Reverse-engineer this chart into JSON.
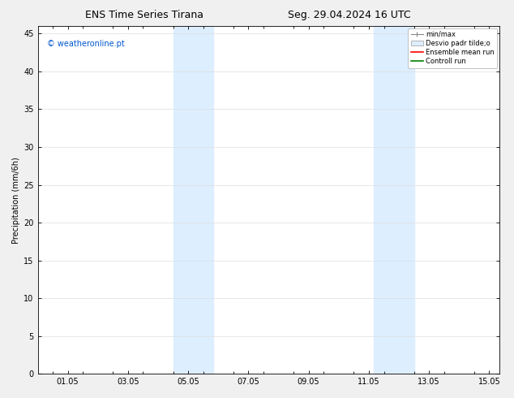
{
  "title_left": "ENS Time Series Tirana",
  "title_right": "Seg. 29.04.2024 16 UTC",
  "ylabel": "Precipitation (mm/6h)",
  "watermark": "© weatheronline.pt",
  "watermark_color": "#0055cc",
  "bg_color": "#f0f0f0",
  "plot_bg_color": "#ffffff",
  "shaded_bands": [
    {
      "xstart": 4.0,
      "xend": 5.33
    },
    {
      "xstart": 10.67,
      "xend": 12.0
    }
  ],
  "shade_color": "#ddeeff",
  "xlim": [
    -0.5,
    14.83
  ],
  "ylim": [
    0,
    46
  ],
  "yticks": [
    0,
    5,
    10,
    15,
    20,
    25,
    30,
    35,
    40,
    45
  ],
  "xtick_labels": [
    "01.05",
    "03.05",
    "05.05",
    "07.05",
    "09.05",
    "11.05",
    "13.05",
    "15.05"
  ],
  "xtick_positions": [
    0.5,
    2.5,
    4.5,
    6.5,
    8.5,
    10.5,
    12.5,
    14.5
  ],
  "legend_labels": [
    "min/max",
    "Desvio padr tilde;o",
    "Ensemble mean run",
    "Controll run"
  ],
  "legend_colors": [
    "#999999",
    "#cccccc",
    "#ff0000",
    "#008000"
  ],
  "grid_color": "#dddddd",
  "title_fontsize": 9,
  "axis_fontsize": 7,
  "tick_fontsize": 7,
  "legend_fontsize": 6
}
